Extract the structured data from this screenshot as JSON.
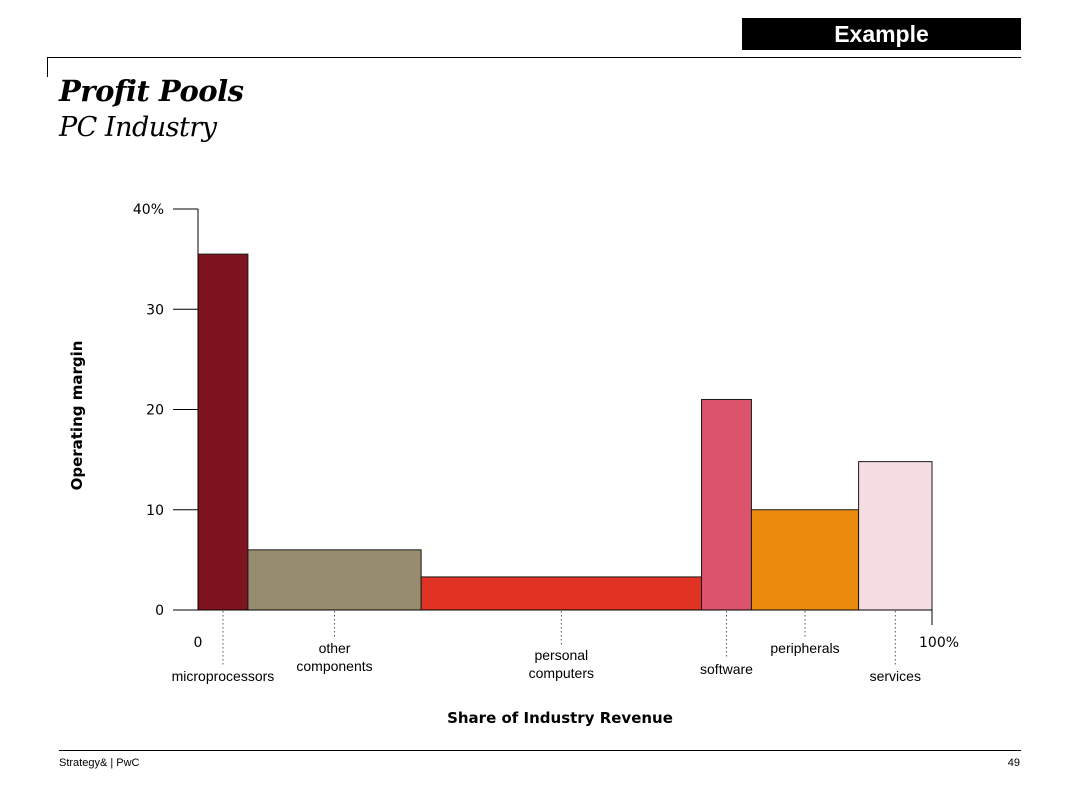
{
  "header": {
    "badge": "Example",
    "title": "Profit Pools",
    "subtitle": "PC Industry"
  },
  "footer": {
    "source": "Strategy& | PwC",
    "page_number": "49"
  },
  "chart_data": {
    "type": "bar",
    "variant": "variable-width (marimekko)",
    "title": "Profit Pools",
    "subtitle": "PC Industry",
    "xlabel": "Share of Industry Revenue",
    "ylabel": "Operating margin",
    "x_unit": "% of industry revenue",
    "y_unit": "% operating margin",
    "xlim": [
      0,
      100
    ],
    "ylim": [
      0,
      40
    ],
    "x_ticks": [
      {
        "value": 0,
        "label": "0"
      },
      {
        "value": 100,
        "label": "100%"
      }
    ],
    "y_ticks": [
      {
        "value": 0,
        "label": "0"
      },
      {
        "value": 10,
        "label": "10"
      },
      {
        "value": 20,
        "label": "20"
      },
      {
        "value": 30,
        "label": "30"
      },
      {
        "value": 40,
        "label": "40%"
      }
    ],
    "grid": false,
    "legend": "none",
    "segments": [
      {
        "label": "microprocessors",
        "label_lines": [
          "microprocessors"
        ],
        "x_start": 0,
        "x_end": 6.8,
        "value": 35.5,
        "color": "#7e1420",
        "label_pos": "lower"
      },
      {
        "label": "other components",
        "label_lines": [
          "other",
          "components"
        ],
        "x_start": 6.8,
        "x_end": 30.4,
        "value": 6,
        "color": "#978c6e",
        "label_pos": "upper"
      },
      {
        "label": "personal computers",
        "label_lines": [
          "personal",
          "computers"
        ],
        "x_start": 30.4,
        "x_end": 68.6,
        "value": 3.3,
        "color": "#df3222",
        "label_pos": "middle"
      },
      {
        "label": "software",
        "label_lines": [
          "software"
        ],
        "x_start": 68.6,
        "x_end": 75.4,
        "value": 21,
        "color": "#db546c",
        "label_pos": "middle"
      },
      {
        "label": "peripherals",
        "label_lines": [
          "peripherals"
        ],
        "x_start": 75.4,
        "x_end": 90,
        "value": 10,
        "color": "#eb8b0e",
        "label_pos": "upper"
      },
      {
        "label": "services",
        "label_lines": [
          "services"
        ],
        "x_start": 90,
        "x_end": 100,
        "value": 14.8,
        "color": "#f5dde1",
        "label_pos": "lower"
      }
    ]
  }
}
